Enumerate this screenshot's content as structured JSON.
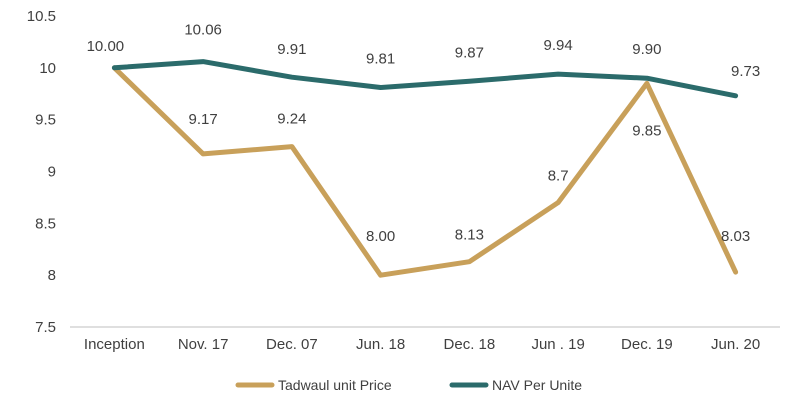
{
  "chart_data": {
    "type": "line",
    "title": "",
    "xlabel": "",
    "ylabel": "",
    "categories": [
      "Inception",
      "Nov. 17",
      "Dec. 07",
      "Jun. 18",
      "Dec. 18",
      "Jun . 19",
      "Dec. 19",
      "Jun. 20"
    ],
    "ylim": [
      7.5,
      10.5
    ],
    "yticks": [
      7.5,
      8,
      8.5,
      9,
      9.5,
      10,
      10.5
    ],
    "ytick_labels": [
      "7.5",
      "8",
      "8.5",
      "9",
      "9.5",
      "10",
      "10.5"
    ],
    "grid": false,
    "legend_position": "bottom",
    "series": [
      {
        "name": "Tadwaul unit Price",
        "color": "#C8A05A",
        "values": [
          10.0,
          9.17,
          9.24,
          8.0,
          8.13,
          8.7,
          9.85,
          8.03
        ],
        "labels": [
          "",
          "9.17",
          "9.24",
          "8.00",
          "8.13",
          "8.7",
          "9.85",
          "8.03"
        ]
      },
      {
        "name": "NAV Per Unite",
        "color": "#2B6B6B",
        "values": [
          10.0,
          10.06,
          9.91,
          9.81,
          9.87,
          9.94,
          9.9,
          9.73
        ],
        "labels": [
          "10.00",
          "10.06",
          "9.91",
          "9.81",
          "9.87",
          "9.94",
          "9.90",
          "9.73"
        ]
      }
    ]
  }
}
